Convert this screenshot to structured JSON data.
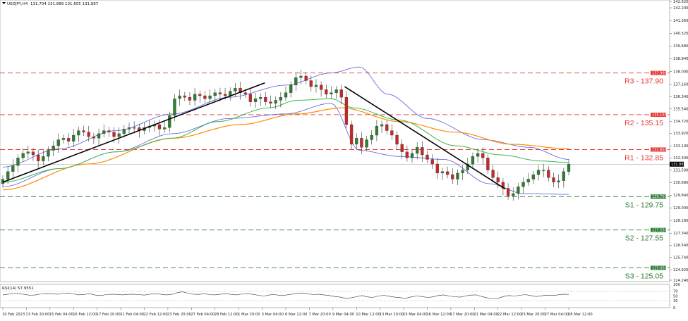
{
  "header": {
    "symbol": "USDJPY,H4",
    "ohlc": "131.704 131.889 131.655 131.887"
  },
  "rsi_label": "RSI(14) 57.9551",
  "colors": {
    "bull": "#2e7d32",
    "bear": "#c62828",
    "ma_fast": "#3cb44b",
    "ma_slow": "#ff8c00",
    "bands": "#5a5adb",
    "resistance": "#e53935",
    "support": "#2e7d32",
    "trendline": "#000000"
  },
  "chart_data": {
    "type": "candlestick",
    "price_axis": {
      "min": 124.24,
      "max": 142.62,
      "ticks": [
        "142.620",
        "142.200",
        "141.360",
        "140.520",
        "139.680",
        "138.840",
        "138.000",
        "137.160",
        "136.340",
        "135.540",
        "134.720",
        "133.920",
        "133.100",
        "132.300",
        "131.500",
        "130.680",
        "129.840",
        "129.000",
        "128.180",
        "127.340",
        "126.540",
        "125.740",
        "124.920",
        "124.240"
      ]
    },
    "time_labels": [
      "10 Feb 2023",
      "13 Feb 20:00",
      "15 Feb 04:00",
      "16 Feb 12:00",
      "17 Feb 20:00",
      "21 Feb 04:00",
      "22 Feb 12:00",
      "23 Feb 20:00",
      "27 Feb 04:00",
      "28 Feb 12:00",
      "1 Mar 20:00",
      "3 Mar 04:00",
      "6 Mar 12:00",
      "7 Mar 20:00",
      "9 Mar 04:00",
      "10 Mar 12:00",
      "13 Mar 20:00",
      "15 Mar 04:00",
      "16 Mar 12:00",
      "17 Mar 20:00",
      "21 Mar 04:00",
      "22 Mar 12:00",
      "23 Mar 20:00",
      "27 Mar 04:00",
      "28 Mar 12:00"
    ],
    "current_price": "131.887",
    "levels": [
      {
        "name": "R3",
        "label": "R3 - 137.90",
        "tag": "137.900",
        "value": 137.9,
        "kind": "resistance"
      },
      {
        "name": "R2",
        "label": "R2 - 135.15",
        "tag": "135.150",
        "value": 135.15,
        "kind": "resistance"
      },
      {
        "name": "R1",
        "label": "R1 - 132.85",
        "tag": "132.850",
        "value": 132.85,
        "kind": "resistance"
      },
      {
        "name": "S1",
        "label": "S1 - 129.75",
        "tag": "129.750",
        "value": 129.75,
        "kind": "support"
      },
      {
        "name": "S2",
        "label": "S2 - 127.55",
        "tag": "127.550",
        "value": 127.55,
        "kind": "support"
      },
      {
        "name": "S3",
        "label": "S3 - 125.05",
        "tag": "125.050",
        "value": 125.05,
        "kind": "support"
      }
    ],
    "closes": [
      130.9,
      131.4,
      131.8,
      132.3,
      132.6,
      132.7,
      132.5,
      132.1,
      132.4,
      132.8,
      133.1,
      133.5,
      133.6,
      133.4,
      133.8,
      134.1,
      134.0,
      133.7,
      133.6,
      133.9,
      134.1,
      134.0,
      133.7,
      133.9,
      134.2,
      134.3,
      134.3,
      134.1,
      134.3,
      134.4,
      134.5,
      134.2,
      134.3,
      135.1,
      136.2,
      136.4,
      136.3,
      136.1,
      136.5,
      136.4,
      136.2,
      136.4,
      136.6,
      136.5,
      136.4,
      136.7,
      136.9,
      136.6,
      136.5,
      136.0,
      136.2,
      136.3,
      136.0,
      135.9,
      136.1,
      136.3,
      136.6,
      137.1,
      137.6,
      137.7,
      137.4,
      137.0,
      137.1,
      136.8,
      136.5,
      136.6,
      136.8,
      136.3,
      134.5,
      133.2,
      133.6,
      133.0,
      133.5,
      133.8,
      134.4,
      134.5,
      134.1,
      133.8,
      133.2,
      132.7,
      132.3,
      132.6,
      133.0,
      132.5,
      132.2,
      131.9,
      131.3,
      131.4,
      131.2,
      130.9,
      131.3,
      131.5,
      131.9,
      132.4,
      132.6,
      132.3,
      131.5,
      131.0,
      130.7,
      130.3,
      129.8,
      129.95,
      130.4,
      130.7,
      130.9,
      131.2,
      131.5,
      131.5,
      131.0,
      130.7,
      130.8,
      131.4,
      131.89
    ],
    "ma_fast": {
      "first": 130.7,
      "points": [
        [
          0,
          130.7
        ],
        [
          0.1,
          131.6
        ],
        [
          0.2,
          132.7
        ],
        [
          0.3,
          133.6
        ],
        [
          0.38,
          134.7
        ],
        [
          0.47,
          135.6
        ],
        [
          0.52,
          136.1
        ],
        [
          0.58,
          136.2
        ],
        [
          0.62,
          135.6
        ],
        [
          0.7,
          134.8
        ],
        [
          0.8,
          133.1
        ],
        [
          0.88,
          132.5
        ],
        [
          0.95,
          132.1
        ],
        [
          1,
          132.0
        ]
      ]
    },
    "ma_slow": {
      "first": 130.2,
      "points": [
        [
          0,
          130.2
        ],
        [
          0.15,
          131.9
        ],
        [
          0.3,
          133.6
        ],
        [
          0.42,
          134.5
        ],
        [
          0.52,
          135.2
        ],
        [
          0.6,
          135.6
        ],
        [
          0.7,
          134.7
        ],
        [
          0.8,
          134.0
        ],
        [
          0.9,
          133.2
        ],
        [
          1,
          132.9
        ]
      ]
    },
    "bands_upper": {
      "points": [
        [
          0,
          131.7
        ],
        [
          0.1,
          132.9
        ],
        [
          0.2,
          134.1
        ],
        [
          0.3,
          135.2
        ],
        [
          0.4,
          136.3
        ],
        [
          0.5,
          137.1
        ],
        [
          0.58,
          137.9
        ],
        [
          0.63,
          138.3
        ],
        [
          0.68,
          136.5
        ],
        [
          0.75,
          134.9
        ],
        [
          0.85,
          133.5
        ],
        [
          0.93,
          133.0
        ],
        [
          1,
          132.2
        ]
      ]
    },
    "bands_lower": {
      "points": [
        [
          0,
          130.4
        ],
        [
          0.1,
          131.6
        ],
        [
          0.2,
          132.7
        ],
        [
          0.3,
          133.9
        ],
        [
          0.4,
          134.9
        ],
        [
          0.5,
          135.2
        ],
        [
          0.58,
          135.9
        ],
        [
          0.63,
          132.8
        ],
        [
          0.7,
          132.4
        ],
        [
          0.78,
          132.2
        ],
        [
          0.86,
          130.6
        ],
        [
          0.92,
          129.95
        ],
        [
          1,
          129.9
        ]
      ]
    },
    "rsi": {
      "current": 57.9551,
      "scale_labels": [
        "100",
        "70",
        "50",
        "30",
        "0"
      ],
      "values": [
        55,
        58,
        62,
        60,
        57,
        53,
        55,
        59,
        61,
        60,
        58,
        62,
        63,
        59,
        55,
        57,
        60,
        54,
        52,
        56,
        58,
        57,
        55,
        57,
        58,
        56,
        54,
        58,
        60,
        58,
        55,
        57,
        64,
        68,
        62,
        58,
        57,
        60,
        56,
        55,
        58,
        60,
        57,
        55,
        59,
        61,
        57,
        53,
        50,
        55,
        56,
        52,
        54,
        58,
        61,
        63,
        60,
        56,
        58,
        55,
        52,
        48,
        45,
        40,
        42,
        47,
        52,
        46,
        44,
        50,
        53,
        49,
        45,
        43,
        40,
        46,
        50,
        48,
        44,
        46,
        52,
        55,
        50,
        47,
        45,
        50,
        54,
        55,
        48,
        42,
        38,
        40,
        48,
        52,
        50,
        53,
        56,
        52,
        48,
        51,
        54,
        52,
        55,
        58,
        57
      ]
    }
  }
}
